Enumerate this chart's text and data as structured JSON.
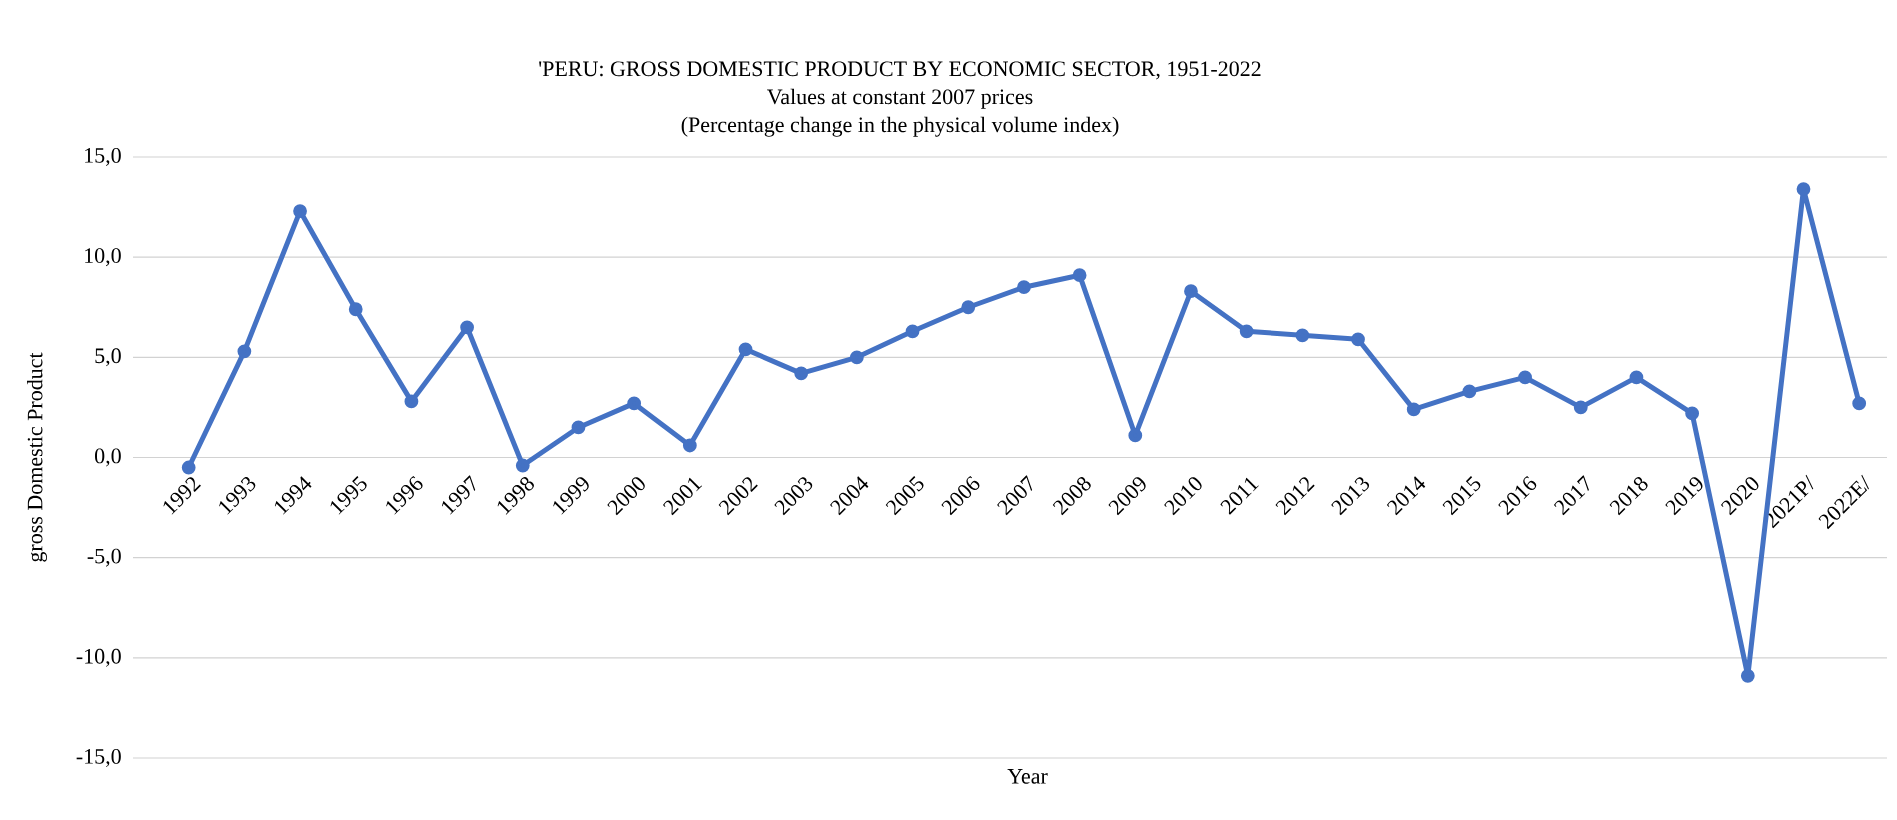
{
  "chart_data": {
    "type": "line",
    "title": "'PERU: GROSS DOMESTIC PRODUCT BY ECONOMIC SECTOR, 1951-2022",
    "subtitle": "Values at constant 2007 prices",
    "annotations": [
      "(Percentage change in the physical volume index)"
    ],
    "xlabel": "Year",
    "ylabel": "gross Domestic Product",
    "categories": [
      "1992",
      "1993",
      "1994",
      "1995",
      "1996",
      "1997",
      "1998",
      "1999",
      "2000",
      "2001",
      "2002",
      "2003",
      "2004",
      "2005",
      "2006",
      "2007",
      "2008",
      "2009",
      "2010",
      "2011",
      "2012",
      "2013",
      "2014",
      "2015",
      "2016",
      "2017",
      "2018",
      "2019",
      "2020",
      "2021P/",
      "2022E/"
    ],
    "values": [
      -0.5,
      5.3,
      12.3,
      7.4,
      2.8,
      6.5,
      -0.4,
      1.5,
      2.7,
      0.6,
      5.4,
      4.2,
      5.0,
      6.3,
      7.5,
      8.5,
      9.1,
      1.1,
      8.3,
      6.3,
      6.1,
      5.9,
      2.4,
      3.3,
      4.0,
      2.5,
      4.0,
      2.2,
      -10.9,
      13.4,
      2.7
    ],
    "color": "#4472c4",
    "ylim": [
      -15,
      15
    ],
    "yticks": [
      {
        "value": -15,
        "label": "-15,0"
      },
      {
        "value": -10,
        "label": "-10,0"
      },
      {
        "value": -5,
        "label": "-5,0"
      },
      {
        "value": 0,
        "label": "0,0"
      },
      {
        "value": 5,
        "label": "5,0"
      },
      {
        "value": 10,
        "label": "10,0"
      },
      {
        "value": 15,
        "label": "15,0"
      }
    ],
    "grid": "y",
    "marker": "circle",
    "line_style": "solid"
  }
}
